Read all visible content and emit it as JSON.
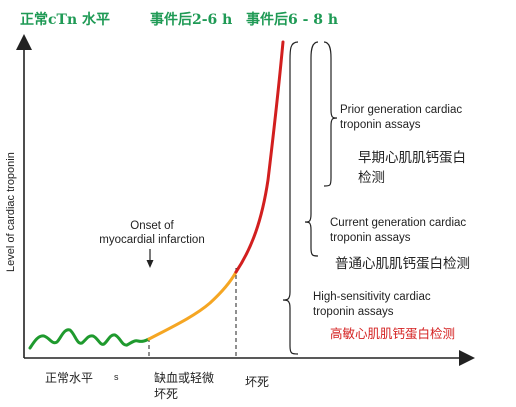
{
  "header": {
    "normal_level": "正常cTn 水平",
    "after_2_6h": "事件后2-6 h",
    "after_6_8h": "事件后6 - 8 h"
  },
  "axis": {
    "y_label": "Level of cardiac troponin"
  },
  "annotations": {
    "onset_line1": "Onset of",
    "onset_line2": "myocardial infarction"
  },
  "brackets": {
    "prior_en_line1": "Prior generation cardiac",
    "prior_en_line2": "troponin assays",
    "prior_zh_line1": "早期心肌肌钙蛋白",
    "prior_zh_line2": "检测",
    "current_en_line1": "Current generation cardiac",
    "current_en_line2": "troponin assays",
    "current_zh": "普通心肌肌钙蛋白检测",
    "hs_en_line1": "High-sensitivity cardiac",
    "hs_en_line2": "troponin assays",
    "hs_zh": "高敏心肌肌钙蛋白检测"
  },
  "phases": {
    "normal": "正常水平",
    "normal_mark": "s",
    "ischemia_line1": "缺血或轻微",
    "ischemia_line2": "坏死",
    "necrosis": "坏死"
  },
  "colors": {
    "normal_curve": "#1f9a2e",
    "ischemia_curve": "#f5a623",
    "necrosis_curve": "#d21f1f",
    "header_text": "#1f9a55",
    "hs_label": "#d42020"
  }
}
